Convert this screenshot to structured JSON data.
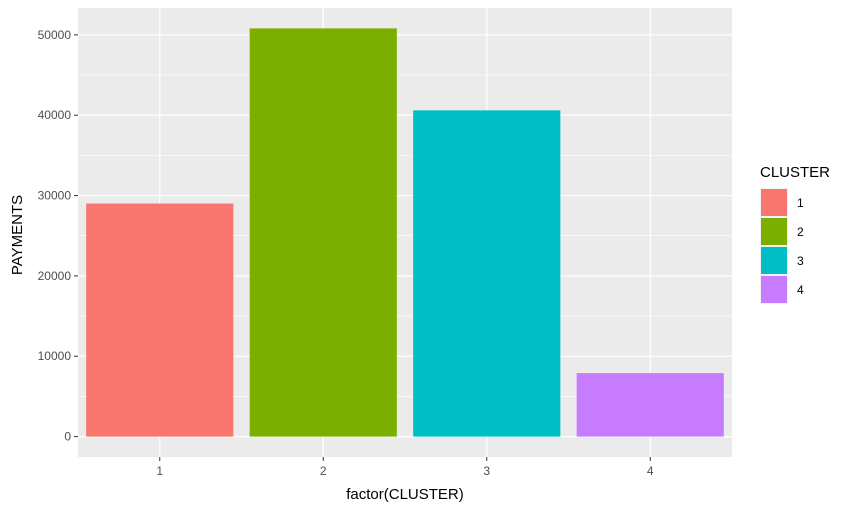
{
  "chart_data": {
    "type": "bar",
    "categories": [
      "1",
      "2",
      "3",
      "4"
    ],
    "values": [
      29000,
      50800,
      40600,
      7900
    ],
    "xlabel": "factor(CLUSTER)",
    "ylabel": "PAYMENTS",
    "ylim": [
      -2540,
      53340
    ],
    "yticks": [
      0,
      10000,
      20000,
      30000,
      40000,
      50000
    ],
    "ytick_labels": [
      "0",
      "10000",
      "20000",
      "30000",
      "40000",
      "50000"
    ],
    "grid": true,
    "legend": {
      "title": "CLUSTER",
      "position": "right",
      "entries": [
        "1",
        "2",
        "3",
        "4"
      ]
    },
    "colors": [
      "#F8766D",
      "#7CAE00",
      "#00BFC4",
      "#C77CFF"
    ],
    "panel_background": "#EBEBEB",
    "grid_color": "#FFFFFF"
  }
}
